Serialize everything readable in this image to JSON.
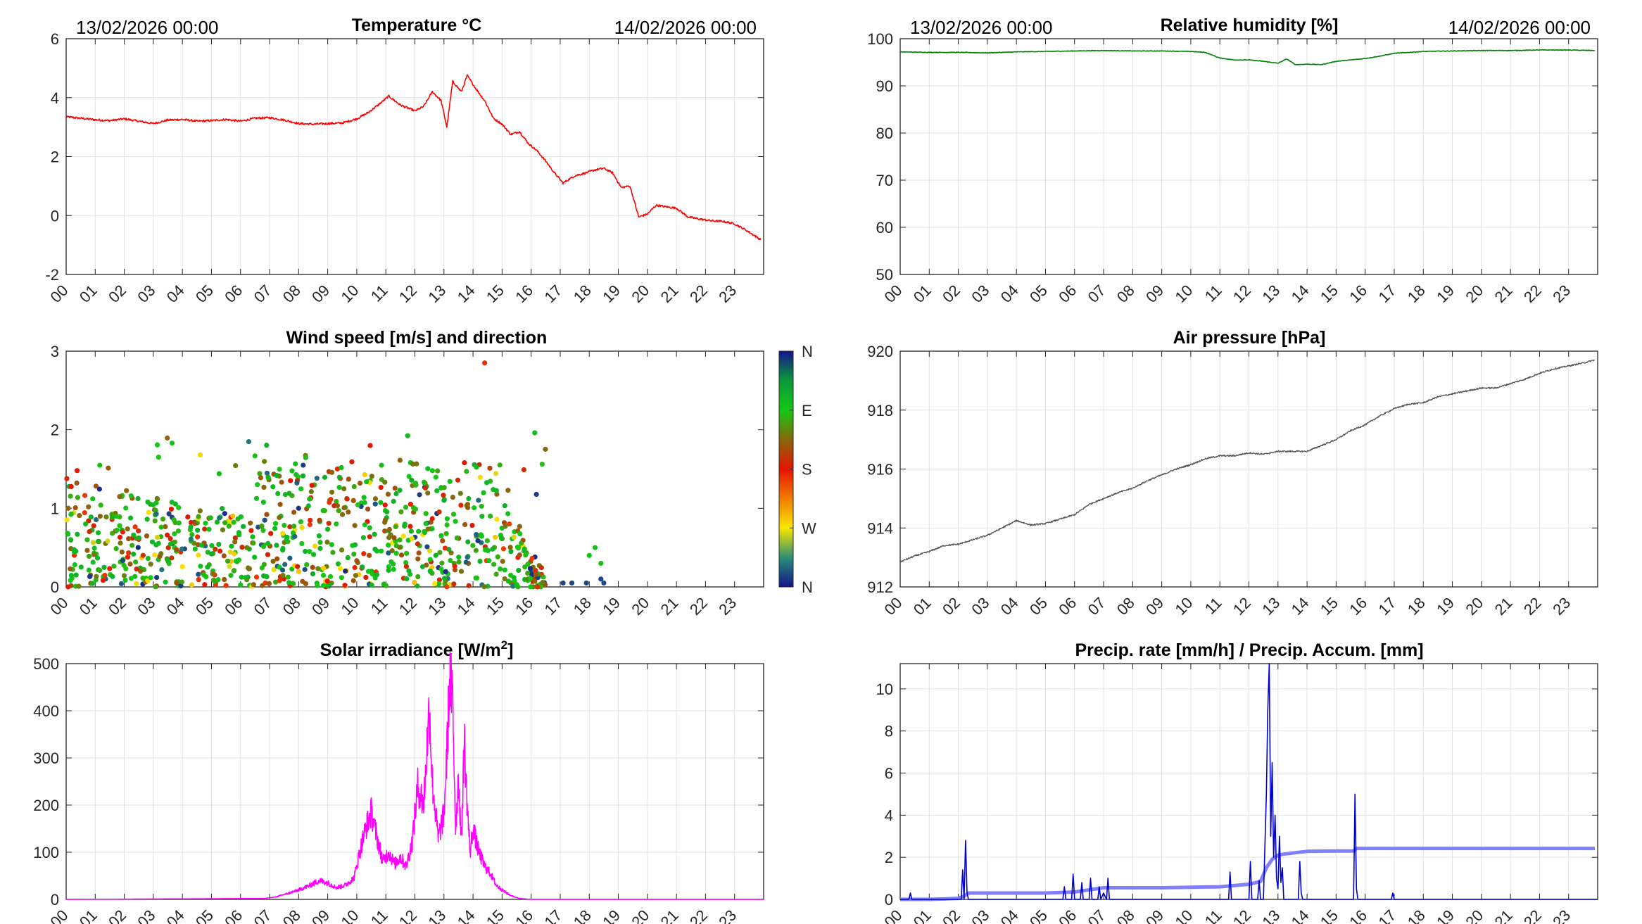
{
  "hours": [
    "00",
    "01",
    "02",
    "03",
    "04",
    "05",
    "06",
    "07",
    "08",
    "09",
    "10",
    "11",
    "12",
    "13",
    "14",
    "15",
    "16",
    "17",
    "18",
    "19",
    "20",
    "21",
    "22",
    "23"
  ],
  "header": {
    "start": "13/02/2026 00:00",
    "end": "14/02/2026 00:00"
  },
  "chart_data": [
    {
      "id": "temperature",
      "type": "line",
      "title": "Temperature °C",
      "color": "#ff0000",
      "xlabel": "",
      "ylabel": "",
      "xlim": [
        0,
        24
      ],
      "ylim": [
        -2,
        6
      ],
      "yticks": [
        -2,
        0,
        2,
        4,
        6
      ],
      "yticklabels": [
        "-2",
        "0",
        "2",
        "4",
        "6"
      ],
      "grid": true,
      "x": [
        0,
        0.5,
        1,
        1.5,
        2,
        2.5,
        3,
        3.5,
        4,
        4.5,
        5,
        5.5,
        6,
        6.5,
        7,
        7.5,
        8,
        8.5,
        9,
        9.5,
        10,
        10.4,
        10.8,
        11.1,
        11.5,
        12,
        12.3,
        12.6,
        12.9,
        13.1,
        13.3,
        13.6,
        13.8,
        14.1,
        14.4,
        14.7,
        15.0,
        15.3,
        15.6,
        15.9,
        16.2,
        16.5,
        16.8,
        17.1,
        17.5,
        17.9,
        18.2,
        18.5,
        18.8,
        19.1,
        19.4,
        19.7,
        20.0,
        20.3,
        20.6,
        21.0,
        21.4,
        21.8,
        22.2,
        22.6,
        23.0,
        23.4,
        23.9
      ],
      "y": [
        3.35,
        3.3,
        3.25,
        3.22,
        3.28,
        3.2,
        3.12,
        3.24,
        3.26,
        3.2,
        3.22,
        3.26,
        3.2,
        3.3,
        3.32,
        3.24,
        3.12,
        3.1,
        3.12,
        3.14,
        3.28,
        3.5,
        3.8,
        4.05,
        3.75,
        3.55,
        3.7,
        4.2,
        3.9,
        3.0,
        4.55,
        4.2,
        4.75,
        4.3,
        3.9,
        3.3,
        3.1,
        2.75,
        2.85,
        2.45,
        2.2,
        1.85,
        1.45,
        1.1,
        1.35,
        1.45,
        1.55,
        1.6,
        1.45,
        0.95,
        1.0,
        -0.05,
        0.05,
        0.35,
        0.3,
        0.25,
        -0.05,
        -0.12,
        -0.18,
        -0.2,
        -0.28,
        -0.5,
        -0.82
      ]
    },
    {
      "id": "humidity",
      "type": "line",
      "title": "Relative humidity [%]",
      "color": "#008000",
      "xlim": [
        0,
        24
      ],
      "ylim": [
        50,
        100
      ],
      "yticks": [
        50,
        60,
        70,
        80,
        90,
        100
      ],
      "yticklabels": [
        "50",
        "60",
        "70",
        "80",
        "90",
        "100"
      ],
      "grid": true,
      "x": [
        0,
        1,
        2,
        3,
        4,
        5,
        6,
        7,
        8,
        9,
        10,
        10.5,
        11,
        11.5,
        12,
        12.5,
        13,
        13.3,
        13.6,
        14,
        14.5,
        15,
        15.5,
        16,
        16.5,
        17,
        18,
        19,
        20,
        21,
        22,
        23,
        23.9
      ],
      "y": [
        97.2,
        97.1,
        97.1,
        97.0,
        97.2,
        97.3,
        97.4,
        97.5,
        97.4,
        97.4,
        97.3,
        97.1,
        95.9,
        95.5,
        95.5,
        95.2,
        94.8,
        95.7,
        94.5,
        94.6,
        94.5,
        95.2,
        95.5,
        95.8,
        96.3,
        96.9,
        97.3,
        97.4,
        97.5,
        97.5,
        97.6,
        97.6,
        97.5
      ]
    },
    {
      "id": "wind",
      "type": "scatter",
      "title": "Wind speed [m/s] and direction",
      "xlim": [
        0,
        24
      ],
      "ylim": [
        0,
        3
      ],
      "yticks": [
        0,
        1,
        2,
        3
      ],
      "yticklabels": [
        "0",
        "1",
        "2",
        "3"
      ],
      "grid": false,
      "colorbar": {
        "labels": [
          "N",
          "W",
          "S",
          "E",
          "N"
        ]
      },
      "summary": {
        "active_hours": [
          0,
          16.5
        ],
        "typical_max_speed": 2.0,
        "peak_speed": 2.85,
        "peak_hour": 14.4,
        "late_points": [
          [
            17.1,
            0.05
          ],
          [
            17.4,
            0.05
          ],
          [
            17.9,
            0.05
          ],
          [
            18.0,
            0.4
          ],
          [
            18.2,
            0.5
          ],
          [
            18.4,
            0.1
          ],
          [
            18.5,
            0.05
          ],
          [
            18.4,
            0.3
          ]
        ]
      }
    },
    {
      "id": "pressure",
      "type": "line",
      "title": "Air pressure [hPa]",
      "color": "#555555",
      "xlim": [
        0,
        24
      ],
      "ylim": [
        912,
        920
      ],
      "yticks": [
        912,
        914,
        916,
        918,
        920
      ],
      "yticklabels": [
        "912",
        "914",
        "916",
        "918",
        "920"
      ],
      "grid": true,
      "x": [
        0,
        0.5,
        1,
        1.5,
        2,
        2.5,
        3,
        3.5,
        4,
        4.5,
        5,
        5.5,
        6,
        6.5,
        7,
        7.5,
        8,
        8.5,
        9,
        9.5,
        10,
        10.5,
        11,
        11.5,
        12,
        12.5,
        13,
        13.5,
        14,
        14.5,
        15,
        15.5,
        16,
        16.5,
        17,
        17.5,
        18,
        18.5,
        19,
        19.5,
        20,
        20.5,
        21,
        21.5,
        22,
        22.5,
        23,
        23.5,
        23.9
      ],
      "y": [
        912.85,
        913.05,
        913.2,
        913.4,
        913.45,
        913.6,
        913.75,
        914.0,
        914.25,
        914.1,
        914.15,
        914.3,
        914.45,
        914.8,
        915.0,
        915.2,
        915.35,
        915.6,
        915.8,
        916.0,
        916.15,
        916.35,
        916.45,
        916.45,
        916.55,
        916.5,
        916.6,
        916.6,
        916.6,
        916.8,
        917.0,
        917.3,
        917.5,
        917.8,
        918.05,
        918.2,
        918.25,
        918.45,
        918.55,
        918.65,
        918.75,
        918.75,
        918.9,
        919.05,
        919.25,
        919.4,
        919.5,
        919.6,
        919.7
      ]
    },
    {
      "id": "solar",
      "type": "line",
      "title": "Solar irradiance [W/m²]",
      "title_main": "Solar irradiance [W/m",
      "title_sup": "2",
      "title_end": "]",
      "color": "#ff00ff",
      "xlim": [
        0,
        24
      ],
      "ylim": [
        0,
        500
      ],
      "yticks": [
        0,
        100,
        200,
        300,
        400,
        500
      ],
      "yticklabels": [
        "0",
        "100",
        "200",
        "300",
        "400",
        "500"
      ],
      "grid": true,
      "x": [
        0,
        6.8,
        7.2,
        7.6,
        8.0,
        8.4,
        8.7,
        9.0,
        9.3,
        9.6,
        9.9,
        10.1,
        10.3,
        10.5,
        10.7,
        10.9,
        11.1,
        11.3,
        11.5,
        11.7,
        11.9,
        12.1,
        12.3,
        12.5,
        12.6,
        12.8,
        13.0,
        13.1,
        13.2,
        13.3,
        13.4,
        13.5,
        13.6,
        13.7,
        13.8,
        13.9,
        14.0,
        14.2,
        14.4,
        14.6,
        14.8,
        15.0,
        15.3,
        15.6,
        16.0,
        24
      ],
      "y": [
        0,
        2,
        5,
        12,
        20,
        30,
        40,
        35,
        25,
        30,
        45,
        100,
        150,
        185,
        130,
        80,
        100,
        75,
        90,
        70,
        120,
        240,
        200,
        410,
        250,
        130,
        180,
        310,
        470,
        420,
        150,
        260,
        120,
        340,
        200,
        100,
        150,
        100,
        70,
        55,
        30,
        20,
        8,
        2,
        0,
        0
      ]
    },
    {
      "id": "precip",
      "type": "line",
      "title": "Precip. rate [mm/h] / Precip. Accum. [mm]",
      "xlim": [
        0,
        24
      ],
      "ylim": [
        0,
        11.2
      ],
      "yticks": [
        0,
        2,
        4,
        6,
        8,
        10
      ],
      "yticklabels": [
        "0",
        "2",
        "4",
        "6",
        "8",
        "10"
      ],
      "grid": true,
      "series": [
        {
          "name": "Precip. rate [mm/h]",
          "color": "#0000cc",
          "x": [
            0,
            0.3,
            0.35,
            0.4,
            2.1,
            2.15,
            2.2,
            2.25,
            2.3,
            2.35,
            2.4,
            2.5,
            3.5,
            5.6,
            5.65,
            5.7,
            5.9,
            5.95,
            6.0,
            6.2,
            6.25,
            6.3,
            6.5,
            6.55,
            6.6,
            6.8,
            6.85,
            6.9,
            7.0,
            7.1,
            7.15,
            7.2,
            11.3,
            11.35,
            11.4,
            12.0,
            12.05,
            12.1,
            12.3,
            12.35,
            12.4,
            12.5,
            12.55,
            12.6,
            12.65,
            12.7,
            12.75,
            12.8,
            12.85,
            12.9,
            12.95,
            13.0,
            13.05,
            13.1,
            13.15,
            13.2,
            13.3,
            13.7,
            13.75,
            13.8,
            13.85,
            15.6,
            15.65,
            15.7,
            15.75,
            16.9,
            16.95,
            17.0,
            24
          ],
          "y": [
            0,
            0,
            0.3,
            0,
            0,
            1.4,
            0,
            2.8,
            0.3,
            0,
            0,
            0,
            0,
            0,
            0.6,
            0,
            0,
            1.2,
            0,
            0,
            0.8,
            0,
            0,
            1.0,
            0,
            0,
            0.6,
            0,
            0.3,
            0,
            1.0,
            0,
            0,
            1.3,
            0,
            0,
            1.8,
            0,
            0,
            0.9,
            0,
            0,
            2.5,
            5.0,
            9.0,
            11.2,
            3.0,
            6.5,
            2.0,
            4.0,
            1.0,
            0.5,
            3.0,
            0.8,
            1.5,
            0,
            0,
            0,
            1.8,
            0.3,
            0,
            0,
            5.0,
            0.5,
            0,
            0,
            0.3,
            0,
            0
          ]
        },
        {
          "name": "Precip. Accum. [mm]",
          "color": "#8080ff",
          "x": [
            0,
            0.5,
            1,
            1.5,
            2.0,
            2.2,
            2.35,
            2.5,
            3,
            4,
            5,
            6,
            6.5,
            7,
            8,
            9,
            10,
            11,
            12,
            12.4,
            12.6,
            12.8,
            13.0,
            13.2,
            13.5,
            13.8,
            14,
            15,
            15.6,
            15.7,
            16,
            17,
            18,
            19,
            20,
            21,
            22,
            23,
            23.9
          ],
          "y": [
            0,
            0,
            0,
            0.02,
            0.05,
            0.15,
            0.3,
            0.3,
            0.3,
            0.3,
            0.3,
            0.35,
            0.45,
            0.55,
            0.55,
            0.55,
            0.58,
            0.6,
            0.72,
            0.85,
            1.5,
            1.9,
            2.1,
            2.15,
            2.2,
            2.25,
            2.28,
            2.3,
            2.3,
            2.42,
            2.42,
            2.42,
            2.42,
            2.42,
            2.42,
            2.42,
            2.42,
            2.42,
            2.42
          ]
        }
      ]
    }
  ]
}
